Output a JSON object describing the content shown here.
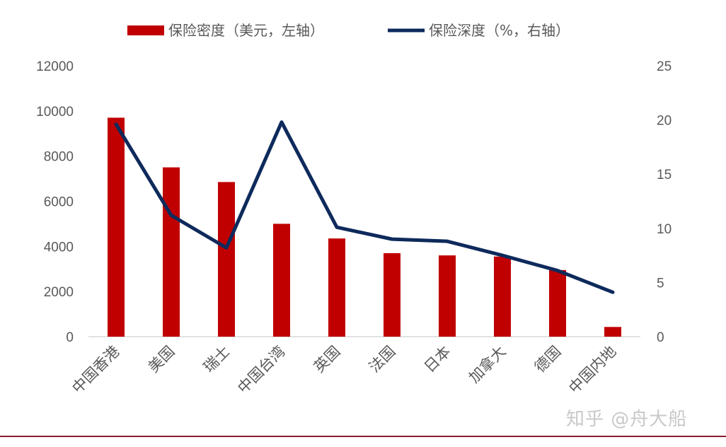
{
  "chart_data": {
    "type": "bar+line",
    "legend_position": "top",
    "categories": [
      "中国香港",
      "美国",
      "瑞士",
      "中国台湾",
      "英国",
      "法国",
      "日本",
      "加拿大",
      "德国",
      "中国内地"
    ],
    "series": [
      {
        "name": "保险密度（美元，左轴）",
        "type": "bar",
        "axis": "left",
        "color": "#c00000",
        "values": [
          9700,
          7500,
          6850,
          5000,
          4350,
          3700,
          3600,
          3550,
          2950,
          430
        ]
      },
      {
        "name": "保险深度（%，右轴）",
        "type": "line",
        "axis": "right",
        "color": "#0e2a5c",
        "values": [
          19.6,
          11.2,
          8.2,
          19.8,
          10.1,
          9.0,
          8.8,
          7.5,
          6.1,
          4.1
        ]
      }
    ],
    "y_left": {
      "min": 0,
      "max": 12000,
      "ticks": [
        0,
        2000,
        4000,
        6000,
        8000,
        10000,
        12000
      ]
    },
    "y_right": {
      "min": 0,
      "max": 25,
      "ticks": [
        0,
        5,
        10,
        15,
        20,
        25
      ]
    },
    "grid": false
  },
  "watermark": "知乎 @舟大船"
}
